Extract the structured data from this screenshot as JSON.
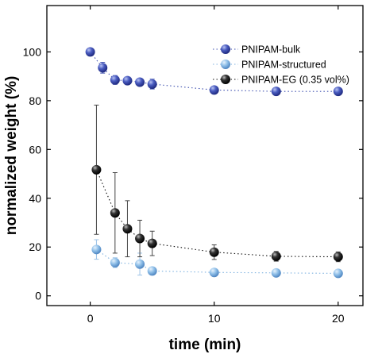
{
  "chart_data": {
    "type": "scatter",
    "title": "",
    "xlabel": "time (min)",
    "ylabel": "normalized weight (%)",
    "xlim": [
      -3.5,
      22
    ],
    "ylim": [
      -4,
      119
    ],
    "xticks": [
      0,
      10,
      20
    ],
    "xtick_labels": [
      "0",
      "10",
      "20"
    ],
    "yticks": [
      0,
      20,
      40,
      60,
      80,
      100
    ],
    "ytick_labels": [
      "0",
      "20",
      "40",
      "60",
      "80",
      "100"
    ],
    "grid": false,
    "legend_position": "top-right",
    "series": [
      {
        "name": "PNIPAM-bulk",
        "color": "#3d4faf",
        "x": [
          0,
          1,
          2,
          3,
          4,
          5,
          10,
          15,
          20
        ],
        "y": [
          100,
          93.5,
          88.5,
          88.2,
          87.6,
          86.8,
          84.4,
          83.8,
          83.8
        ],
        "err": [
          1.5,
          2.2,
          1.8,
          1.5,
          1.5,
          2.0,
          1.0,
          1.0,
          1.0
        ]
      },
      {
        "name": "PNIPAM-structured",
        "color": "#7fb2e0",
        "x": [
          0.5,
          2,
          4,
          5,
          10,
          15,
          20
        ],
        "y": [
          19,
          13.6,
          13,
          10.2,
          9.6,
          9.4,
          9.2
        ],
        "err": [
          4,
          2,
          4.5,
          1.5,
          1.0,
          1.0,
          1.0
        ]
      },
      {
        "name": "PNIPAM-EG (0.35 vol%)",
        "color": "#111111",
        "x": [
          0.5,
          2,
          3,
          4,
          5,
          10,
          15,
          20
        ],
        "y": [
          51.7,
          34,
          27.5,
          23.5,
          21.5,
          17.9,
          16.2,
          16
        ],
        "err": [
          26.5,
          16.5,
          11.5,
          7.5,
          5,
          3,
          2,
          2
        ]
      }
    ]
  }
}
